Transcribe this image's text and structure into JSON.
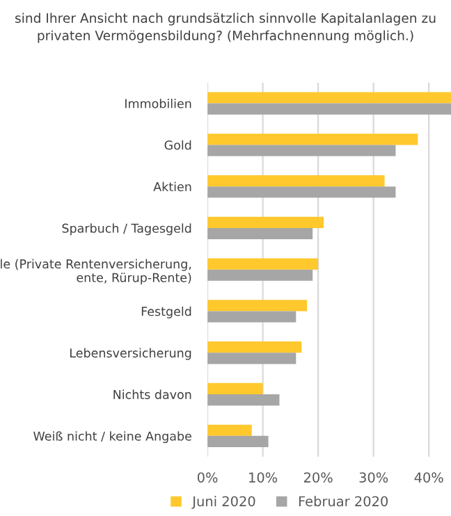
{
  "chart_data": {
    "type": "bar",
    "orientation": "horizontal",
    "title": "sind Ihrer Ansicht nach grundsätzlich sinnvolle Kapitalanlagen zu\nprivaten Vermögensbildung? (Mehrfachnennung möglich.)",
    "categories": [
      "Immobilien",
      "Gold",
      "Aktien",
      "Sparbuch / Tagesgeld",
      "le (Private Rentenversicherung,\nente, Rürup-Rente)",
      "Festgeld",
      "Lebensversicherung",
      "Nichts davon",
      "Weiß nicht / keine Angabe"
    ],
    "series": [
      {
        "name": "Juni 2020",
        "color": "#ffc82c",
        "values": [
          44,
          38,
          32,
          21,
          20,
          18,
          17,
          10,
          8
        ]
      },
      {
        "name": "Februar 2020",
        "color": "#a6a6a6",
        "values": [
          44,
          34,
          34,
          19,
          19,
          16,
          16,
          13,
          11
        ]
      }
    ],
    "xlim": [
      0,
      44
    ],
    "xticks": [
      {
        "value": 0,
        "label": "0%"
      },
      {
        "value": 10,
        "label": "10%"
      },
      {
        "value": 20,
        "label": "20%"
      },
      {
        "value": 30,
        "label": "30%"
      },
      {
        "value": 40,
        "label": "40%"
      }
    ],
    "grid": "x",
    "legend": "bottom"
  }
}
